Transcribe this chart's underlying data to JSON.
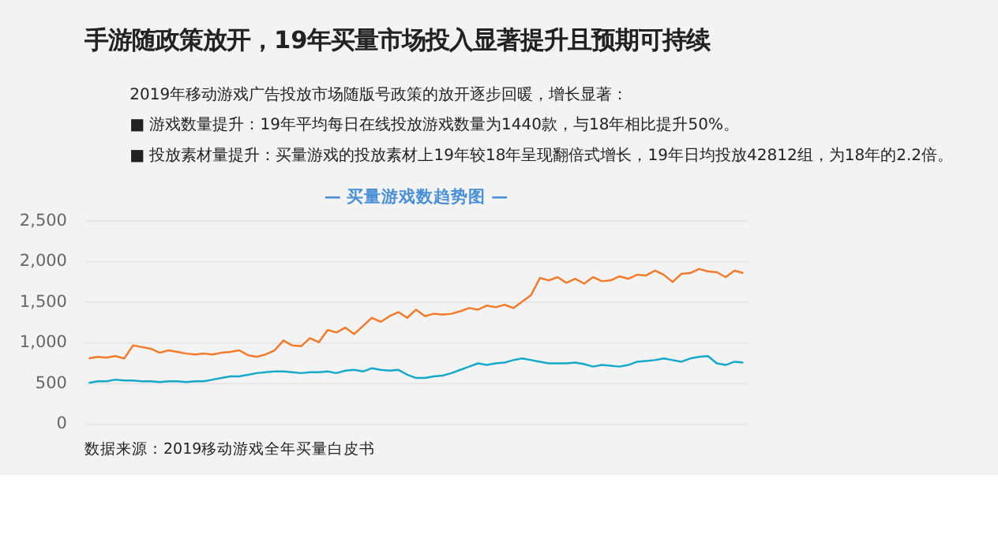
{
  "chart_data": {
    "type": "line",
    "title": "手游随政策放开，19年买量市场投入显著提升且预期可持续",
    "subtitle": "— 买量游戏数趋势图 —",
    "annotations": [
      "2019年移动游戏广告投放市场随版号政策的放开逐步回暖，增长显著：",
      "■  游戏数量提升：19年平均每日在线投放游戏数量为1440款，与18年相比提升50%。",
      "■  投放素材量提升：买量游戏的投放素材上19年较18年呈现翻倍式增长，19年日均投放42812组，为18年的2.2倍。",
      "数据来源：2019移动游戏全年买量白皮书"
    ],
    "categories": [
      null,
      null,
      null,
      null,
      null,
      null,
      null,
      null,
      null,
      null,
      null,
      null,
      null,
      null,
      null,
      null,
      null,
      null,
      null,
      null,
      null,
      null,
      null,
      null,
      null,
      null,
      null,
      null,
      null,
      null,
      null,
      null,
      null,
      null,
      null,
      null,
      null,
      null,
      null,
      null,
      null,
      null,
      null,
      null,
      null,
      null,
      null,
      null,
      null,
      null,
      null,
      null,
      null,
      null,
      null,
      null,
      null,
      null,
      null,
      null,
      null,
      null,
      null,
      null,
      null,
      null,
      null,
      null,
      null,
      null,
      null,
      null,
      null,
      null,
      null
    ],
    "series": [
      {
        "color": "#f47a2a",
        "values": [
          800,
          820,
          810,
          830,
          800,
          960,
          940,
          920,
          870,
          900,
          880,
          860,
          850,
          860,
          850,
          870,
          880,
          900,
          840,
          820,
          850,
          900,
          1020,
          960,
          950,
          1050,
          1000,
          1150,
          1120,
          1180,
          1100,
          1200,
          1300,
          1250,
          1320,
          1370,
          1300,
          1400,
          1320,
          1350,
          1340,
          1350,
          1380,
          1420,
          1400,
          1450,
          1430,
          1460,
          1420,
          1500,
          1580,
          1790,
          1760,
          1800,
          1730,
          1780,
          1720,
          1800,
          1750,
          1760,
          1810,
          1780,
          1830,
          1820,
          1880,
          1830,
          1740,
          1840,
          1850,
          1900,
          1870,
          1860,
          1800,
          1880,
          1850
        ]
      },
      {
        "color": "#14a9c8",
        "values": [
          500,
          520,
          520,
          540,
          530,
          530,
          520,
          520,
          510,
          520,
          520,
          510,
          520,
          520,
          540,
          560,
          580,
          580,
          600,
          620,
          630,
          640,
          640,
          630,
          620,
          630,
          630,
          640,
          620,
          650,
          660,
          640,
          680,
          660,
          650,
          660,
          600,
          560,
          560,
          580,
          590,
          620,
          660,
          700,
          740,
          720,
          740,
          750,
          780,
          800,
          780,
          760,
          740,
          740,
          740,
          750,
          730,
          700,
          720,
          710,
          700,
          720,
          760,
          770,
          780,
          800,
          780,
          760,
          800,
          820,
          830,
          740,
          720,
          760,
          750
        ]
      }
    ],
    "ylim": [
      0,
      2500
    ],
    "yticks": [
      0,
      500,
      {
        "value": 1000,
        "label": "1,000"
      },
      {
        "value": 1500,
        "label": "1,500"
      },
      {
        "value": 2000,
        "label": "2,000"
      },
      {
        "value": 2500,
        "label": "2,500"
      }
    ],
    "grid": "y",
    "line_style": "solid",
    "tick_labels": "y"
  }
}
